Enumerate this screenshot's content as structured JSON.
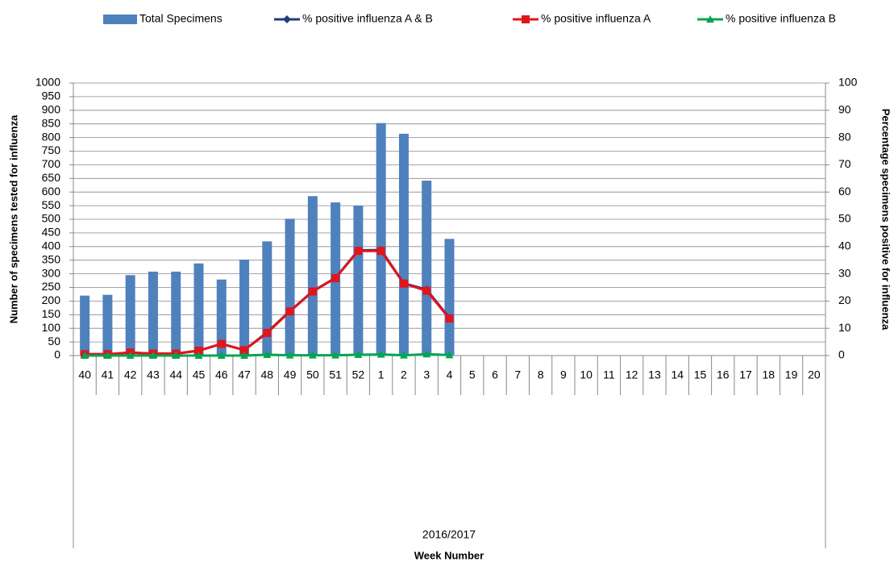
{
  "chart_data": {
    "type": "bar-line",
    "y_axis_label": "Number of specimens tested for influenza",
    "y2_axis_label": "Percentage specimens positive for influenza",
    "x_axis_label": "Week Number",
    "x_group_label": "2016/2017",
    "categories": [
      "40",
      "41",
      "42",
      "43",
      "44",
      "45",
      "46",
      "47",
      "48",
      "49",
      "50",
      "51",
      "52",
      "1",
      "2",
      "3",
      "4",
      "5",
      "6",
      "7",
      "8",
      "9",
      "10",
      "11",
      "12",
      "13",
      "14",
      "15",
      "16",
      "17",
      "18",
      "19",
      "20"
    ],
    "series": [
      {
        "name": "Total Specimens",
        "type": "bar",
        "color": "#4f81bd",
        "axis": "y",
        "values": [
          220,
          223,
          295,
          308,
          308,
          338,
          279,
          352,
          419,
          502,
          585,
          562,
          550,
          853,
          814,
          642,
          428,
          null,
          null,
          null,
          null,
          null,
          null,
          null,
          null,
          null,
          null,
          null,
          null,
          null,
          null,
          null,
          null
        ]
      },
      {
        "name": "% positive influenza A & B",
        "type": "line",
        "color": "#1f3d7a",
        "marker": "diamond",
        "axis": "y2",
        "values": [
          0.5,
          0.5,
          1.1,
          0.7,
          0.7,
          1.8,
          4.3,
          2.0,
          8.5,
          16.3,
          23.6,
          28.5,
          38.6,
          38.7,
          26.5,
          24.2,
          13.8,
          null,
          null,
          null,
          null,
          null,
          null,
          null,
          null,
          null,
          null,
          null,
          null,
          null,
          null,
          null,
          null
        ]
      },
      {
        "name": "% positive influenza A",
        "type": "line",
        "color": "#e3141b",
        "marker": "square",
        "axis": "y2",
        "values": [
          0.5,
          0.5,
          1.1,
          0.7,
          0.7,
          1.8,
          4.3,
          2.0,
          8.3,
          16.2,
          23.5,
          28.4,
          38.4,
          38.4,
          26.4,
          23.8,
          13.6,
          null,
          null,
          null,
          null,
          null,
          null,
          null,
          null,
          null,
          null,
          null,
          null,
          null,
          null,
          null,
          null
        ]
      },
      {
        "name": "% positive influenza B",
        "type": "line",
        "color": "#00a650",
        "marker": "triangle",
        "axis": "y2",
        "values": [
          0,
          0,
          0,
          0,
          0,
          0,
          0,
          0,
          0.3,
          0.1,
          0.1,
          0.1,
          0.3,
          0.4,
          0.1,
          0.5,
          0.2,
          null,
          null,
          null,
          null,
          null,
          null,
          null,
          null,
          null,
          null,
          null,
          null,
          null,
          null,
          null,
          null
        ]
      }
    ],
    "ylim": [
      0,
      1000
    ],
    "yticks": [
      0,
      50,
      100,
      150,
      200,
      250,
      300,
      350,
      400,
      450,
      500,
      550,
      600,
      650,
      700,
      750,
      800,
      850,
      900,
      950,
      1000
    ],
    "y2lim": [
      0,
      100
    ],
    "y2ticks": [
      0,
      10,
      20,
      30,
      40,
      50,
      60,
      70,
      80,
      90,
      100
    ],
    "grid": true,
    "legend_position": "top"
  }
}
